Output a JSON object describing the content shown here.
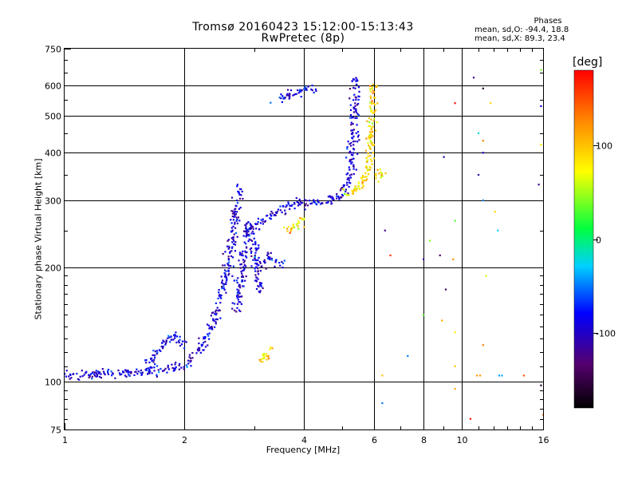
{
  "title": {
    "line1": "Tromsø 20160423 15:12:00-15:13:43",
    "line2": "RwPretec (8p)"
  },
  "phases_box": {
    "heading": "Phases",
    "line_o": "mean, sd,O: -94.4, 18.8",
    "line_x": "mean, sd,X: 89.3, 23.4"
  },
  "chart_data": {
    "type": "scatter",
    "xlabel": "Frequency [MHz]",
    "ylabel": "Stationary phase Virtual Height [km]",
    "x_scale": "log",
    "y_scale": "log",
    "xlim": [
      1,
      16
    ],
    "ylim": [
      75,
      750
    ],
    "x_ticks": [
      1,
      2,
      4,
      6,
      8,
      10,
      16
    ],
    "x_tick_labels": [
      "1",
      "2",
      "4",
      "6",
      "8",
      "10",
      "16"
    ],
    "y_ticks": [
      75,
      100,
      200,
      300,
      400,
      500,
      600,
      750
    ],
    "y_tick_labels": [
      "75",
      "100",
      "200",
      "300",
      "400",
      "500",
      "600",
      "750"
    ],
    "grid": true,
    "colorbar": {
      "label": "[deg]",
      "range": [
        -180,
        180
      ],
      "ticks": [
        -100,
        0,
        100
      ],
      "tick_labels": [
        "-100",
        "0",
        "100"
      ]
    },
    "series": [
      {
        "mode": "O",
        "mean_phase_deg": -94.4,
        "sd_phase_deg": 18.8,
        "segments": [
          {
            "x": [
              1.0,
              1.2,
              1.5,
              1.8,
              2.0,
              2.1
            ],
            "y": [
              104,
              105,
              106,
              108,
              111,
              116
            ]
          },
          {
            "x": [
              1.6,
              1.7,
              1.8,
              1.9,
              2.0
            ],
            "y": [
              110,
              118,
              128,
              133,
              124
            ]
          },
          {
            "x": [
              2.15,
              2.25,
              2.35,
              2.45,
              2.55,
              2.65,
              2.75
            ],
            "y": [
              118,
              128,
              140,
              162,
              190,
              240,
              330
            ]
          },
          {
            "x": [
              2.7,
              2.8,
              2.9,
              3.0,
              3.1
            ],
            "y": [
              150,
              200,
              260,
              230,
              170
            ]
          },
          {
            "x": [
              3.0,
              3.3,
              3.6,
              3.9,
              4.2,
              4.5,
              4.8,
              5.0,
              5.2,
              5.3,
              5.35,
              5.4
            ],
            "y": [
              255,
              275,
              288,
              293,
              296,
              298,
              302,
              312,
              335,
              400,
              500,
              630
            ]
          },
          {
            "x": [
              3.4,
              3.7,
              4.0,
              4.3
            ],
            "y": [
              545,
              570,
              585,
              590
            ]
          },
          {
            "x": [
              3.1,
              3.3,
              3.5
            ],
            "y": [
              200,
              215,
              205
            ]
          }
        ]
      },
      {
        "mode": "X",
        "mean_phase_deg": 89.3,
        "sd_phase_deg": 23.4,
        "segments": [
          {
            "x": [
              3.6,
              3.8,
              4.0
            ],
            "y": [
              248,
              258,
              268
            ]
          },
          {
            "x": [
              5.0,
              5.3,
              5.6,
              5.8,
              5.9,
              6.0
            ],
            "y": [
              312,
              318,
              330,
              360,
              430,
              600
            ]
          },
          {
            "x": [
              6.1,
              6.2,
              6.3
            ],
            "y": [
              340,
              355,
              360
            ]
          },
          {
            "x": [
              3.1,
              3.2,
              3.3
            ],
            "y": [
              112,
              118,
              122
            ]
          }
        ]
      }
    ],
    "scatter_points": [
      {
        "x": 9.6,
        "y": 540,
        "phase": 175
      },
      {
        "x": 10.7,
        "y": 630,
        "phase": -120
      },
      {
        "x": 11.3,
        "y": 590,
        "phase": -160
      },
      {
        "x": 11.8,
        "y": 540,
        "phase": 90
      },
      {
        "x": 15.8,
        "y": 660,
        "phase": 40
      },
      {
        "x": 15.8,
        "y": 530,
        "phase": -90
      },
      {
        "x": 11.3,
        "y": 400,
        "phase": -100
      },
      {
        "x": 11.0,
        "y": 450,
        "phase": -20
      },
      {
        "x": 11.0,
        "y": 350,
        "phase": -110
      },
      {
        "x": 11.3,
        "y": 430,
        "phase": 130
      },
      {
        "x": 9.0,
        "y": 390,
        "phase": -110
      },
      {
        "x": 15.8,
        "y": 420,
        "phase": 80
      },
      {
        "x": 15.6,
        "y": 330,
        "phase": -120
      },
      {
        "x": 12.3,
        "y": 250,
        "phase": -30
      },
      {
        "x": 12.1,
        "y": 280,
        "phase": 90
      },
      {
        "x": 11.3,
        "y": 300,
        "phase": -50
      },
      {
        "x": 8.3,
        "y": 235,
        "phase": 40
      },
      {
        "x": 9.6,
        "y": 265,
        "phase": 30
      },
      {
        "x": 8.8,
        "y": 215,
        "phase": -140
      },
      {
        "x": 9.5,
        "y": 210,
        "phase": 120
      },
      {
        "x": 6.4,
        "y": 250,
        "phase": -120
      },
      {
        "x": 6.6,
        "y": 215,
        "phase": 160
      },
      {
        "x": 8.0,
        "y": 210,
        "phase": -120
      },
      {
        "x": 11.5,
        "y": 190,
        "phase": 60
      },
      {
        "x": 9.1,
        "y": 175,
        "phase": -140
      },
      {
        "x": 8.0,
        "y": 150,
        "phase": 30
      },
      {
        "x": 8.9,
        "y": 145,
        "phase": 110
      },
      {
        "x": 9.6,
        "y": 135,
        "phase": 80
      },
      {
        "x": 11.3,
        "y": 125,
        "phase": 130
      },
      {
        "x": 7.3,
        "y": 117,
        "phase": -50
      },
      {
        "x": 9.6,
        "y": 110,
        "phase": 100
      },
      {
        "x": 10.9,
        "y": 104,
        "phase": 120
      },
      {
        "x": 11.1,
        "y": 104,
        "phase": 120
      },
      {
        "x": 12.4,
        "y": 104,
        "phase": -40
      },
      {
        "x": 12.6,
        "y": 104,
        "phase": -40
      },
      {
        "x": 14.3,
        "y": 104,
        "phase": 150
      },
      {
        "x": 15.8,
        "y": 98,
        "phase": -160
      },
      {
        "x": 6.3,
        "y": 88,
        "phase": -50
      },
      {
        "x": 10.5,
        "y": 80,
        "phase": 170
      },
      {
        "x": 16.0,
        "y": 82,
        "phase": 130
      },
      {
        "x": 9.6,
        "y": 96,
        "phase": 110
      },
      {
        "x": 6.3,
        "y": 104,
        "phase": 100
      }
    ]
  }
}
